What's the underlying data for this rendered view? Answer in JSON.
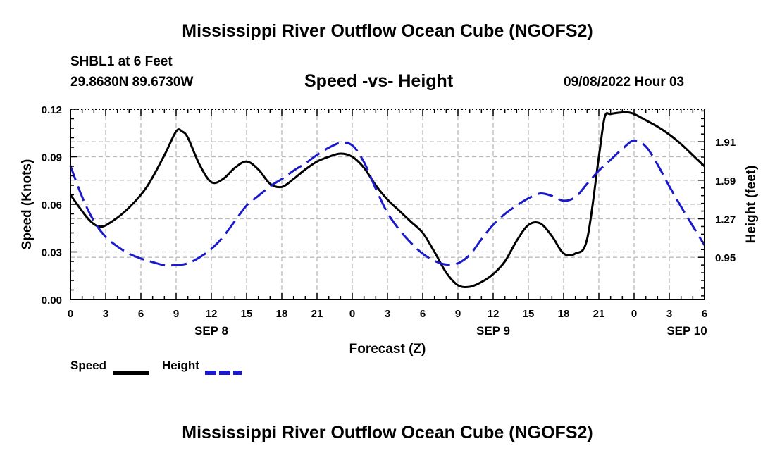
{
  "header": {
    "title": "Mississippi River Outflow Ocean Cube (NGOFS2)",
    "station": "SHBL1 at 6 Feet",
    "coords": "29.8680N  89.6730W",
    "subtitle": "Speed -vs- Height",
    "datetime": "09/08/2022 Hour 03"
  },
  "footer": {
    "title": "Mississippi River Outflow Ocean Cube (NGOFS2)"
  },
  "legend": {
    "speed_label": "Speed",
    "height_label": "Height"
  },
  "colors": {
    "speed": "#000000",
    "height": "#1a1acc",
    "grid": "#bbbbbb"
  },
  "chart_data": {
    "type": "line",
    "xlabel": "Forecast (Z)",
    "ylabel": "Speed (Knots)",
    "y2label": "Height (feet)",
    "xlim": [
      0,
      54
    ],
    "ylim": [
      0,
      0.12
    ],
    "y2lim": [
      0.6,
      2.18
    ],
    "x_ticks": [
      0,
      3,
      6,
      9,
      12,
      15,
      18,
      21,
      24,
      27,
      30,
      33,
      36,
      39,
      42,
      45,
      48,
      51,
      54
    ],
    "x_tick_labels": [
      "0",
      "3",
      "6",
      "9",
      "12",
      "15",
      "18",
      "21",
      "0",
      "3",
      "6",
      "9",
      "12",
      "15",
      "18",
      "21",
      "0",
      "3",
      "6"
    ],
    "date_labels": [
      {
        "x": 12,
        "label": "SEP 8"
      },
      {
        "x": 36,
        "label": "SEP 9"
      },
      {
        "x": 52.5,
        "label": "SEP 10"
      }
    ],
    "y_ticks": [
      0,
      0.03,
      0.06,
      0.09,
      0.12
    ],
    "y_tick_labels": [
      "0.00",
      "0.03",
      "0.06",
      "0.09",
      "0.12"
    ],
    "y2_ticks": [
      0.95,
      1.27,
      1.59,
      1.91
    ],
    "y2_tick_labels": [
      "0.95",
      "1.27",
      "1.59",
      "1.91"
    ],
    "series": [
      {
        "name": "Speed",
        "axis": "left",
        "style": "solid",
        "x": [
          0,
          1.5,
          2.5,
          3.5,
          5,
          6.5,
          8,
          9,
          9.5,
          10,
          11,
          12,
          13,
          14,
          15,
          16,
          17,
          18,
          19,
          20,
          21,
          22,
          23,
          24,
          25,
          26,
          27,
          28,
          29,
          30,
          31,
          32,
          33,
          34,
          35,
          36,
          37,
          38,
          39,
          40,
          41,
          42,
          43,
          44,
          45,
          45.5,
          46,
          47,
          47.5,
          48,
          49,
          50,
          51,
          52,
          53,
          54
        ],
        "values": [
          0.066,
          0.051,
          0.046,
          0.049,
          0.058,
          0.071,
          0.091,
          0.106,
          0.106,
          0.102,
          0.085,
          0.074,
          0.076,
          0.083,
          0.087,
          0.082,
          0.073,
          0.071,
          0.076,
          0.082,
          0.087,
          0.09,
          0.092,
          0.09,
          0.083,
          0.072,
          0.063,
          0.056,
          0.049,
          0.042,
          0.03,
          0.017,
          0.009,
          0.008,
          0.011,
          0.016,
          0.024,
          0.037,
          0.047,
          0.048,
          0.04,
          0.029,
          0.029,
          0.038,
          0.09,
          0.115,
          0.117,
          0.118,
          0.118,
          0.117,
          0.113,
          0.109,
          0.104,
          0.098,
          0.091,
          0.084
        ]
      },
      {
        "name": "Height",
        "axis": "right",
        "style": "dashed",
        "x": [
          0,
          1,
          2,
          3,
          4,
          5,
          6,
          7,
          8,
          9,
          10,
          11,
          12,
          13,
          14,
          15,
          16,
          17,
          18,
          19,
          20,
          21,
          22,
          23,
          24,
          25,
          26,
          27,
          28,
          29,
          30,
          31,
          32,
          33,
          34,
          35,
          36,
          37,
          38,
          39,
          40,
          41,
          42,
          43,
          44,
          45,
          46,
          47,
          48,
          49,
          50,
          51,
          52,
          53,
          54
        ],
        "values": [
          1.71,
          1.45,
          1.25,
          1.12,
          1.04,
          0.98,
          0.94,
          0.91,
          0.885,
          0.885,
          0.9,
          0.95,
          1.02,
          1.12,
          1.25,
          1.38,
          1.46,
          1.54,
          1.6,
          1.67,
          1.73,
          1.8,
          1.86,
          1.9,
          1.88,
          1.74,
          1.52,
          1.32,
          1.18,
          1.07,
          0.98,
          0.92,
          0.89,
          0.9,
          0.97,
          1.1,
          1.22,
          1.31,
          1.38,
          1.44,
          1.48,
          1.46,
          1.42,
          1.45,
          1.56,
          1.67,
          1.76,
          1.85,
          1.92,
          1.87,
          1.72,
          1.54,
          1.37,
          1.21,
          1.05
        ]
      }
    ]
  }
}
